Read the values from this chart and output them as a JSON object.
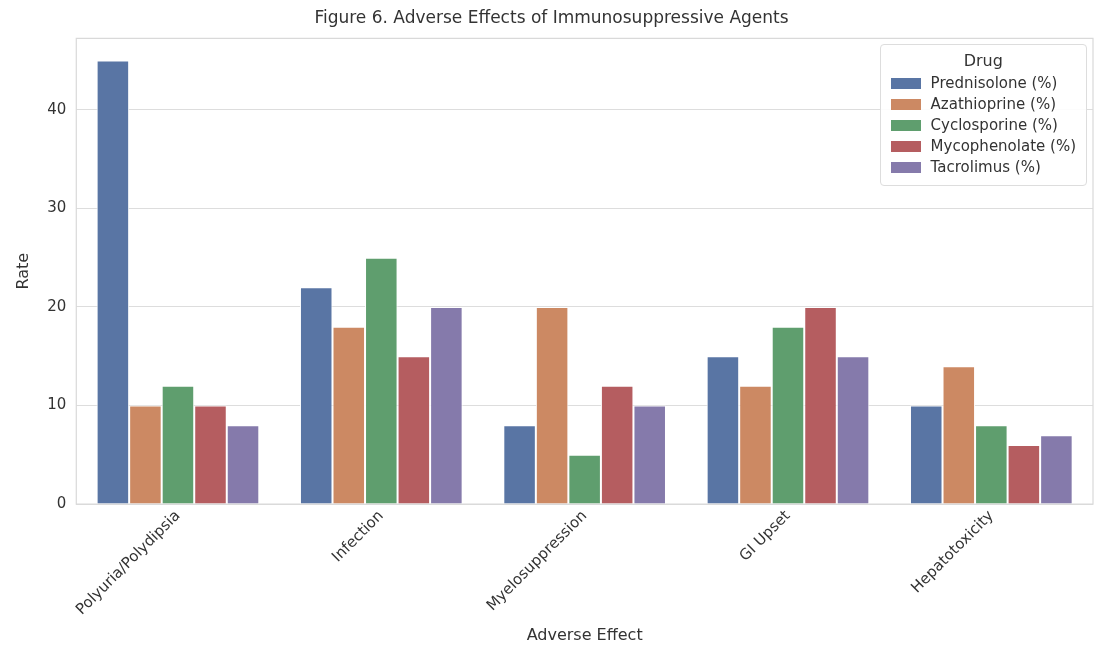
{
  "chart_data": {
    "type": "bar",
    "title": "Figure 6. Adverse Effects of Immunosuppressive Agents",
    "xlabel": "Adverse Effect",
    "ylabel": "Rate",
    "legend_title": "Drug",
    "categories": [
      "Polyuria/Polydipsia",
      "Infection",
      "Myelosuppression",
      "GI Upset",
      "Hepatotoxicity"
    ],
    "series": [
      {
        "name": "Prednisolone (%)",
        "color": "#5975a4",
        "values": [
          45,
          22,
          8,
          15,
          10
        ]
      },
      {
        "name": "Azathioprine (%)",
        "color": "#cc8963",
        "values": [
          10,
          18,
          20,
          12,
          14
        ]
      },
      {
        "name": "Cyclosporine (%)",
        "color": "#5f9e6e",
        "values": [
          12,
          25,
          5,
          18,
          8
        ]
      },
      {
        "name": "Mycophenolate (%)",
        "color": "#b55d60",
        "values": [
          10,
          15,
          12,
          20,
          6
        ]
      },
      {
        "name": "Tacrolimus (%)",
        "color": "#857aab",
        "values": [
          8,
          20,
          10,
          15,
          7
        ]
      }
    ],
    "ylim": [
      0,
      47.25
    ],
    "yticks": [
      0,
      10,
      20,
      30,
      40
    ],
    "grid": "y",
    "legend": "top right"
  }
}
